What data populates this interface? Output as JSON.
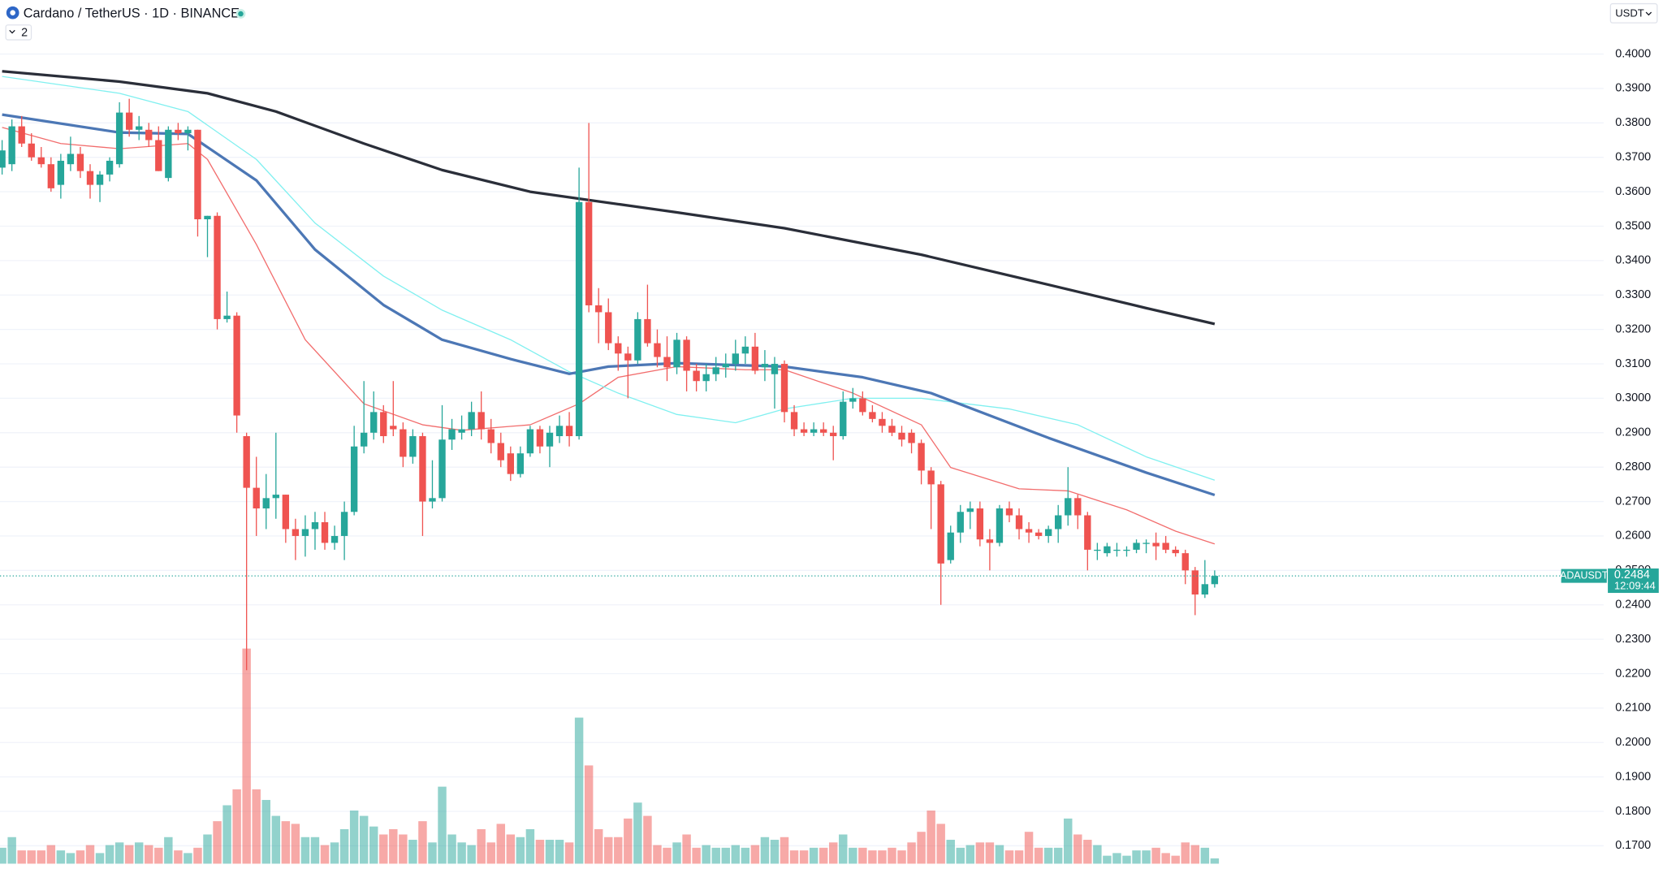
{
  "chart_data": {
    "type": "candlestick",
    "title": "Cardano / TetherUS · 1D · BINANCE",
    "indicator_count": "2",
    "currency": "USDT",
    "up_color": "#26a69a",
    "down_color": "#ef5350",
    "grid": true,
    "ylim": [
      0.1648,
      0.4157
    ],
    "yticks": [
      {
        "value": 0.4,
        "label": "0.4000"
      },
      {
        "value": 0.39,
        "label": "0.3900"
      },
      {
        "value": 0.38,
        "label": "0.3800"
      },
      {
        "value": 0.37,
        "label": "0.3700"
      },
      {
        "value": 0.36,
        "label": "0.3600"
      },
      {
        "value": 0.35,
        "label": "0.3500"
      },
      {
        "value": 0.34,
        "label": "0.3400"
      },
      {
        "value": 0.33,
        "label": "0.3300"
      },
      {
        "value": 0.32,
        "label": "0.3200"
      },
      {
        "value": 0.31,
        "label": "0.3100"
      },
      {
        "value": 0.3,
        "label": "0.3000"
      },
      {
        "value": 0.29,
        "label": "0.2900"
      },
      {
        "value": 0.28,
        "label": "0.2800"
      },
      {
        "value": 0.27,
        "label": "0.2700"
      },
      {
        "value": 0.26,
        "label": "0.2600"
      },
      {
        "value": 0.25,
        "label": "0.2500"
      },
      {
        "value": 0.24,
        "label": "0.2400"
      },
      {
        "value": 0.23,
        "label": "0.2300"
      },
      {
        "value": 0.22,
        "label": "0.2200"
      },
      {
        "value": 0.21,
        "label": "0.2100"
      },
      {
        "value": 0.2,
        "label": "0.2000"
      },
      {
        "value": 0.19,
        "label": "0.1900"
      },
      {
        "value": 0.18,
        "label": "0.1800"
      },
      {
        "value": 0.17,
        "label": "0.1700"
      }
    ],
    "open": [
      0.367,
      0.368,
      0.379,
      0.374,
      0.37,
      0.368,
      0.362,
      0.368,
      0.371,
      0.366,
      0.362,
      0.365,
      0.368,
      0.383,
      0.378,
      0.378,
      0.375,
      0.364,
      0.378,
      0.377,
      0.378,
      0.352,
      0.353,
      0.323,
      0.324,
      0.289,
      0.274,
      0.268,
      0.271,
      0.272,
      0.262,
      0.26,
      0.262,
      0.264,
      0.258,
      0.26,
      0.267,
      0.286,
      0.29,
      0.296,
      0.292,
      0.291,
      0.283,
      0.289,
      0.27,
      0.271,
      0.288,
      0.29,
      0.291,
      0.296,
      0.291,
      0.287,
      0.284,
      0.278,
      0.284,
      0.291,
      0.286,
      0.289,
      0.292,
      0.289,
      0.357,
      0.327,
      0.325,
      0.316,
      0.313,
      0.311,
      0.323,
      0.316,
      0.312,
      0.309,
      0.317,
      0.308,
      0.305,
      0.307,
      0.309,
      0.31,
      0.313,
      0.315,
      0.309,
      0.307,
      0.31,
      0.296,
      0.291,
      0.29,
      0.291,
      0.29,
      0.289,
      0.299,
      0.3,
      0.296,
      0.294,
      0.292,
      0.29,
      0.29,
      0.287,
      0.279,
      0.275,
      0.253,
      0.261,
      0.267,
      0.268,
      0.259,
      0.258,
      0.268,
      0.266,
      0.262,
      0.261,
      0.26,
      0.262,
      0.266,
      0.271,
      0.266,
      0.256,
      0.255,
      0.256,
      0.256,
      0.256,
      0.258,
      0.258,
      0.258,
      0.256,
      0.255,
      0.25,
      0.243,
      0.246
    ],
    "high": [
      0.375,
      0.381,
      0.382,
      0.377,
      0.373,
      0.37,
      0.371,
      0.376,
      0.373,
      0.368,
      0.366,
      0.37,
      0.386,
      0.387,
      0.382,
      0.38,
      0.379,
      0.379,
      0.38,
      0.379,
      0.378,
      0.353,
      0.354,
      0.331,
      0.325,
      0.29,
      0.283,
      0.278,
      0.29,
      0.272,
      0.265,
      0.266,
      0.267,
      0.267,
      0.263,
      0.27,
      0.292,
      0.305,
      0.302,
      0.298,
      0.305,
      0.293,
      0.291,
      0.29,
      0.282,
      0.298,
      0.294,
      0.295,
      0.299,
      0.302,
      0.294,
      0.29,
      0.286,
      0.286,
      0.292,
      0.292,
      0.292,
      0.295,
      0.296,
      0.367,
      0.38,
      0.332,
      0.329,
      0.318,
      0.315,
      0.325,
      0.333,
      0.32,
      0.318,
      0.319,
      0.318,
      0.31,
      0.31,
      0.312,
      0.313,
      0.317,
      0.318,
      0.319,
      0.314,
      0.312,
      0.311,
      0.298,
      0.293,
      0.293,
      0.293,
      0.292,
      0.302,
      0.303,
      0.302,
      0.298,
      0.296,
      0.294,
      0.292,
      0.291,
      0.288,
      0.28,
      0.276,
      0.263,
      0.269,
      0.27,
      0.27,
      0.262,
      0.269,
      0.27,
      0.268,
      0.264,
      0.262,
      0.263,
      0.269,
      0.28,
      0.272,
      0.267,
      0.258,
      0.258,
      0.258,
      0.257,
      0.259,
      0.259,
      0.261,
      0.26,
      0.257,
      0.256,
      0.251,
      0.253,
      0.25
    ],
    "low": [
      0.365,
      0.366,
      0.373,
      0.369,
      0.367,
      0.36,
      0.358,
      0.366,
      0.364,
      0.358,
      0.357,
      0.363,
      0.367,
      0.376,
      0.375,
      0.373,
      0.366,
      0.363,
      0.375,
      0.372,
      0.347,
      0.341,
      0.32,
      0.322,
      0.29,
      0.221,
      0.26,
      0.262,
      0.265,
      0.258,
      0.253,
      0.254,
      0.256,
      0.256,
      0.256,
      0.253,
      0.266,
      0.284,
      0.288,
      0.287,
      0.289,
      0.28,
      0.281,
      0.26,
      0.268,
      0.27,
      0.285,
      0.288,
      0.289,
      0.288,
      0.284,
      0.28,
      0.276,
      0.277,
      0.283,
      0.284,
      0.28,
      0.287,
      0.286,
      0.288,
      0.325,
      0.316,
      0.314,
      0.308,
      0.3,
      0.31,
      0.315,
      0.309,
      0.305,
      0.307,
      0.302,
      0.302,
      0.302,
      0.305,
      0.306,
      0.308,
      0.31,
      0.307,
      0.305,
      0.297,
      0.293,
      0.289,
      0.289,
      0.289,
      0.289,
      0.282,
      0.288,
      0.297,
      0.295,
      0.293,
      0.29,
      0.289,
      0.286,
      0.284,
      0.275,
      0.262,
      0.24,
      0.252,
      0.258,
      0.262,
      0.257,
      0.25,
      0.257,
      0.264,
      0.259,
      0.258,
      0.259,
      0.258,
      0.258,
      0.263,
      0.262,
      0.25,
      0.253,
      0.254,
      0.254,
      0.254,
      0.255,
      0.255,
      0.253,
      0.255,
      0.254,
      0.246,
      0.237,
      0.242,
      0.245
    ],
    "close": [
      0.372,
      0.379,
      0.374,
      0.37,
      0.368,
      0.361,
      0.369,
      0.371,
      0.366,
      0.362,
      0.365,
      0.369,
      0.383,
      0.378,
      0.379,
      0.375,
      0.366,
      0.378,
      0.377,
      0.378,
      0.352,
      0.353,
      0.323,
      0.324,
      0.295,
      0.274,
      0.268,
      0.271,
      0.272,
      0.262,
      0.26,
      0.262,
      0.264,
      0.258,
      0.26,
      0.267,
      0.286,
      0.29,
      0.296,
      0.289,
      0.291,
      0.283,
      0.289,
      0.27,
      0.271,
      0.288,
      0.291,
      0.291,
      0.296,
      0.291,
      0.287,
      0.282,
      0.278,
      0.284,
      0.291,
      0.286,
      0.29,
      0.292,
      0.289,
      0.357,
      0.327,
      0.325,
      0.316,
      0.313,
      0.311,
      0.323,
      0.316,
      0.312,
      0.309,
      0.317,
      0.308,
      0.305,
      0.307,
      0.309,
      0.31,
      0.313,
      0.315,
      0.308,
      0.31,
      0.31,
      0.296,
      0.291,
      0.29,
      0.291,
      0.29,
      0.289,
      0.299,
      0.3,
      0.296,
      0.294,
      0.292,
      0.29,
      0.288,
      0.287,
      0.279,
      0.275,
      0.252,
      0.261,
      0.267,
      0.268,
      0.259,
      0.258,
      0.268,
      0.266,
      0.262,
      0.261,
      0.26,
      0.262,
      0.266,
      0.271,
      0.266,
      0.256,
      0.256,
      0.257,
      0.256,
      0.256,
      0.258,
      0.258,
      0.257,
      0.256,
      0.255,
      0.25,
      0.243,
      0.246,
      0.2484
    ],
    "volume_lim": [
      0,
      100
    ],
    "volume": [
      6,
      10,
      5,
      5,
      5,
      7,
      5,
      4,
      5,
      7,
      4,
      7,
      8,
      7,
      8,
      7,
      6,
      10,
      5,
      4,
      6,
      11,
      16,
      22,
      28,
      81,
      28,
      24,
      18,
      16,
      15,
      10,
      10,
      7,
      8,
      13,
      20,
      18,
      14,
      11,
      13,
      11,
      9,
      16,
      8,
      29,
      11,
      8,
      7,
      13,
      8,
      15,
      11,
      10,
      13,
      9,
      9,
      9,
      8,
      55,
      37,
      13,
      10,
      10,
      17,
      23,
      18,
      7,
      6,
      8,
      11,
      6,
      7,
      6,
      6,
      7,
      6,
      7,
      10,
      9,
      10,
      5,
      5,
      6,
      6,
      8,
      11,
      6,
      6,
      5,
      5,
      6,
      5,
      8,
      12,
      20,
      15,
      9,
      6,
      7,
      8,
      8,
      7,
      5,
      5,
      12,
      6,
      6,
      6,
      17,
      11,
      9,
      7,
      3,
      4,
      3,
      5,
      5,
      6,
      4,
      3,
      8,
      7,
      6,
      2
    ],
    "moving_averages": [
      {
        "color": "#f26d6d",
        "line_width": 1,
        "x": [
          0,
          6,
          12,
          19,
          21,
          26,
          31,
          37,
          43,
          47,
          54,
          59,
          63,
          69,
          76,
          80,
          87,
          94,
          97,
          104,
          109,
          115,
          120,
          124
        ],
        "values": [
          0.3787,
          0.374,
          0.3725,
          0.374,
          0.3694,
          0.3447,
          0.317,
          0.2984,
          0.2923,
          0.2907,
          0.2923,
          0.2984,
          0.3061,
          0.3092,
          0.3083,
          0.3083,
          0.3015,
          0.2923,
          0.2799,
          0.2737,
          0.2731,
          0.2676,
          0.2614,
          0.2577
        ]
      },
      {
        "color": "#80f0f0",
        "line_width": 1,
        "x": [
          0,
          12,
          19,
          26,
          32,
          39,
          45,
          52,
          58,
          63,
          69,
          75,
          80,
          87,
          94,
          103,
          110,
          117,
          124
        ],
        "values": [
          0.3935,
          0.3886,
          0.3833,
          0.3694,
          0.3509,
          0.3355,
          0.3256,
          0.317,
          0.3077,
          0.3015,
          0.2953,
          0.2929,
          0.2969,
          0.3,
          0.3,
          0.2969,
          0.2923,
          0.283,
          0.2762
        ]
      },
      {
        "color": "#4c77b5",
        "line_width": 2.5,
        "x": [
          0,
          12,
          19,
          26,
          32,
          39,
          45,
          52,
          58,
          62,
          69,
          80,
          88,
          95,
          107,
          117,
          124
        ],
        "values": [
          0.3824,
          0.3772,
          0.3768,
          0.3633,
          0.3432,
          0.3271,
          0.317,
          0.3114,
          0.3071,
          0.3092,
          0.3102,
          0.3092,
          0.3061,
          0.3015,
          0.2885,
          0.2784,
          0.2719
        ]
      },
      {
        "color": "#2a2e39",
        "line_width": 2.5,
        "x": [
          0,
          12,
          21,
          28,
          37,
          45,
          54,
          59,
          69,
          80,
          94,
          107,
          117,
          124
        ],
        "values": [
          0.395,
          0.392,
          0.3886,
          0.3833,
          0.374,
          0.3663,
          0.36,
          0.358,
          0.354,
          0.3494,
          0.3417,
          0.333,
          0.3262,
          0.3216
        ]
      }
    ],
    "last_price": {
      "symbol": "ADAUSDT",
      "value": 0.2484,
      "countdown": "12:09:44"
    }
  }
}
